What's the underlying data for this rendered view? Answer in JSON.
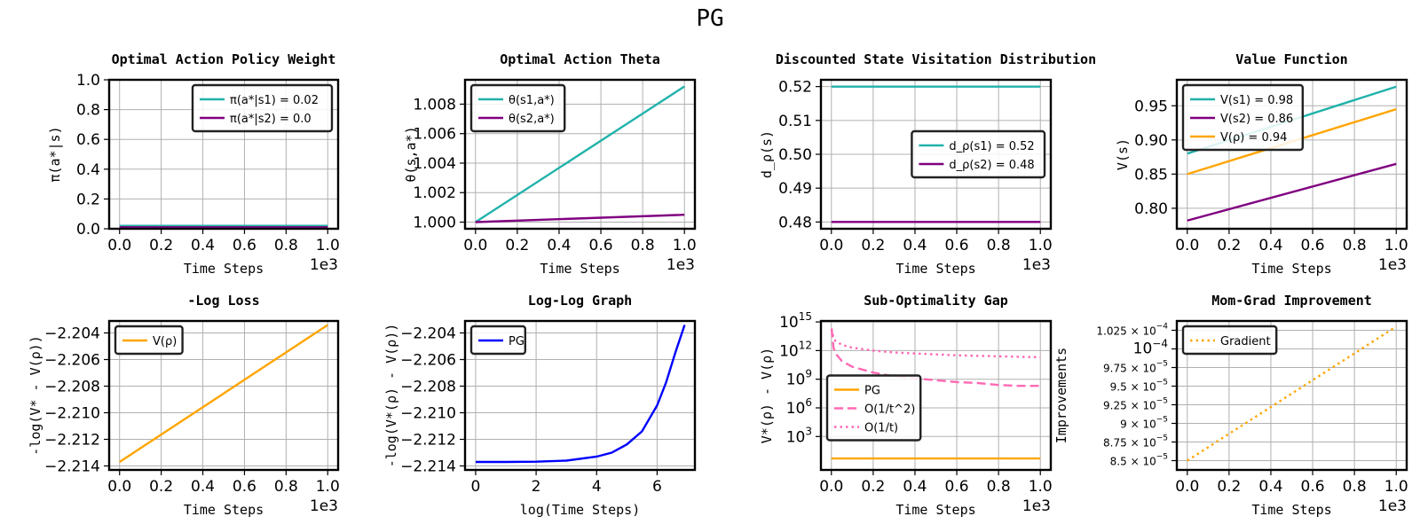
{
  "figure": {
    "title": "PG"
  },
  "chart_data": [
    {
      "type": "line",
      "title": "Optimal Action Policy Weight",
      "xlabel": "Time Steps",
      "ylabel": "π(a*|s)",
      "xlim": [
        -50,
        1050
      ],
      "ylim": [
        0,
        1
      ],
      "xticks": [
        0,
        200,
        400,
        600,
        800,
        1000
      ],
      "xtick_labels": [
        "0.0",
        "0.2",
        "0.4",
        "0.6",
        "0.8",
        "1.0"
      ],
      "x_offset_label": "1e3",
      "yticks": [
        0,
        0.2,
        0.4,
        0.6,
        0.8,
        1.0
      ],
      "ytick_labels": [
        "0.0",
        "0.2",
        "0.4",
        "0.6",
        "0.8",
        "1.0"
      ],
      "grid": true,
      "legend": "top-right",
      "series": [
        {
          "name": "π(a*|s1) = 0.02",
          "color": "#20b2aa",
          "dash": "solid",
          "x": [
            0,
            1000
          ],
          "y": [
            0.02,
            0.02
          ]
        },
        {
          "name": "π(a*|s2) = 0.0",
          "color": "#800080",
          "dash": "solid",
          "x": [
            0,
            1000
          ],
          "y": [
            0.01,
            0.01
          ]
        }
      ]
    },
    {
      "type": "line",
      "title": "Optimal Action Theta",
      "xlabel": "Time Steps",
      "ylabel": "θ(s,a*)",
      "xlim": [
        -50,
        1050
      ],
      "ylim": [
        0.99955,
        1.00965
      ],
      "xticks": [
        0,
        200,
        400,
        600,
        800,
        1000
      ],
      "xtick_labels": [
        "0.0",
        "0.2",
        "0.4",
        "0.6",
        "0.8",
        "1.0"
      ],
      "x_offset_label": "1e3",
      "yticks": [
        1.0,
        1.002,
        1.004,
        1.006,
        1.008
      ],
      "ytick_labels": [
        "1.000",
        "1.002",
        "1.004",
        "1.006",
        "1.008"
      ],
      "grid": true,
      "legend": "top-left",
      "series": [
        {
          "name": "θ(s1,a*)",
          "color": "#20b2aa",
          "dash": "solid",
          "x": [
            0,
            1000
          ],
          "y": [
            1.0,
            1.0092
          ]
        },
        {
          "name": "θ(s2,a*)",
          "color": "#800080",
          "dash": "solid",
          "x": [
            0,
            1000
          ],
          "y": [
            1.0,
            1.0005
          ]
        }
      ]
    },
    {
      "type": "line",
      "title": "Discounted State Visitation Distribution",
      "xlabel": "Time Steps",
      "ylabel": "d_ρ(s)",
      "xlim": [
        -50,
        1050
      ],
      "ylim": [
        0.478,
        0.522
      ],
      "xticks": [
        0,
        200,
        400,
        600,
        800,
        1000
      ],
      "xtick_labels": [
        "0.0",
        "0.2",
        "0.4",
        "0.6",
        "0.8",
        "1.0"
      ],
      "x_offset_label": "1e3",
      "yticks": [
        0.48,
        0.49,
        0.5,
        0.51,
        0.52
      ],
      "ytick_labels": [
        "0.48",
        "0.49",
        "0.50",
        "0.51",
        "0.52"
      ],
      "grid": true,
      "legend": "center-right",
      "series": [
        {
          "name": "d_ρ(s1) = 0.52",
          "color": "#20b2aa",
          "dash": "solid",
          "x": [
            0,
            1000
          ],
          "y": [
            0.52,
            0.52
          ]
        },
        {
          "name": "d_ρ(s2) = 0.48",
          "color": "#800080",
          "dash": "solid",
          "x": [
            0,
            1000
          ],
          "y": [
            0.48,
            0.48
          ]
        }
      ]
    },
    {
      "type": "line",
      "title": "Value Function",
      "xlabel": "Time Steps",
      "ylabel": "V(s)",
      "xlim": [
        -50,
        1050
      ],
      "ylim": [
        0.77,
        0.988
      ],
      "xticks": [
        0,
        200,
        400,
        600,
        800,
        1000
      ],
      "xtick_labels": [
        "0.0",
        "0.2",
        "0.4",
        "0.6",
        "0.8",
        "1.0"
      ],
      "x_offset_label": "1e3",
      "yticks": [
        0.8,
        0.85,
        0.9,
        0.95
      ],
      "ytick_labels": [
        "0.80",
        "0.85",
        "0.90",
        "0.95"
      ],
      "grid": true,
      "legend": "top-left",
      "series": [
        {
          "name": "V(s1) = 0.98",
          "color": "#20b2aa",
          "dash": "solid",
          "x": [
            0,
            1000
          ],
          "y": [
            0.88,
            0.978
          ]
        },
        {
          "name": "V(s2) = 0.86",
          "color": "#800080",
          "dash": "solid",
          "x": [
            0,
            1000
          ],
          "y": [
            0.782,
            0.865
          ]
        },
        {
          "name": "V(ρ) = 0.94",
          "color": "#ffa500",
          "dash": "solid",
          "x": [
            0,
            1000
          ],
          "y": [
            0.85,
            0.945
          ]
        }
      ]
    },
    {
      "type": "line",
      "title": "-Log Loss",
      "xlabel": "Time Steps",
      "ylabel": "-log(V* - V(ρ))",
      "xlim": [
        -50,
        1050
      ],
      "ylim": [
        -2.2143,
        -2.2031
      ],
      "xticks": [
        0,
        200,
        400,
        600,
        800,
        1000
      ],
      "xtick_labels": [
        "0.0",
        "0.2",
        "0.4",
        "0.6",
        "0.8",
        "1.0"
      ],
      "x_offset_label": "1e3",
      "yticks": [
        -2.214,
        -2.212,
        -2.21,
        -2.208,
        -2.206,
        -2.204
      ],
      "ytick_labels": [
        "−2.214",
        "−2.212",
        "−2.210",
        "−2.208",
        "−2.206",
        "−2.204"
      ],
      "grid": true,
      "legend": "top-left",
      "series": [
        {
          "name": "V(ρ)",
          "color": "#ffa500",
          "dash": "solid",
          "x": [
            0,
            1000
          ],
          "y": [
            -2.2137,
            -2.2034
          ]
        }
      ]
    },
    {
      "type": "line",
      "title": "Log-Log Graph",
      "xlabel": "log(Time Steps)",
      "ylabel": "-log(V*(ρ) - V(ρ))",
      "xlim": [
        -0.35,
        7.25
      ],
      "ylim": [
        -2.2143,
        -2.2031
      ],
      "xticks": [
        0,
        2,
        4,
        6
      ],
      "xtick_labels": [
        "0",
        "2",
        "4",
        "6"
      ],
      "yticks": [
        -2.214,
        -2.212,
        -2.21,
        -2.208,
        -2.206,
        -2.204
      ],
      "ytick_labels": [
        "−2.214",
        "−2.212",
        "−2.210",
        "−2.208",
        "−2.206",
        "−2.204"
      ],
      "grid": true,
      "legend": "top-left",
      "series": [
        {
          "name": "PG",
          "color": "#0000ff",
          "dash": "solid",
          "x": [
            0,
            1,
            2,
            3,
            4,
            4.5,
            5,
            5.5,
            6,
            6.3,
            6.6,
            6.91
          ],
          "y": [
            -2.2137,
            -2.2137,
            -2.21368,
            -2.2136,
            -2.2133,
            -2.213,
            -2.21238,
            -2.2114,
            -2.20945,
            -2.2077,
            -2.2055,
            -2.2034
          ]
        }
      ]
    },
    {
      "type": "line",
      "title": "Sub-Optimality Gap",
      "xlabel": "Time Steps",
      "ylabel": "V*(ρ) - V(ρ)",
      "xlim": [
        -50,
        1050
      ],
      "ylim_log10": [
        -0.5,
        15.1
      ],
      "yscale": "log",
      "xticks": [
        0,
        200,
        400,
        600,
        800,
        1000
      ],
      "xtick_labels": [
        "0.0",
        "0.2",
        "0.4",
        "0.6",
        "0.8",
        "1.0"
      ],
      "x_offset_label": "1e3",
      "yticks_log10": [
        3,
        6,
        9,
        12,
        15
      ],
      "ytick_bases": [
        "10",
        "10",
        "10",
        "10",
        "10"
      ],
      "ytick_exps": [
        "3",
        "6",
        "9",
        "12",
        "15"
      ],
      "grid": true,
      "legend": "center-left",
      "series": [
        {
          "name": "PG",
          "color": "#ffa500",
          "dash": "solid",
          "x": [
            0,
            1000
          ],
          "y_log10": [
            0.7,
            0.7
          ]
        },
        {
          "name": "O(1/t^2)",
          "color": "#ff69b4",
          "dash": "dashed",
          "x": [
            1,
            10,
            20,
            50,
            100,
            200,
            300,
            400,
            500,
            600,
            700,
            800,
            900,
            1000
          ],
          "y_log10": [
            14.3,
            12.3,
            11.7,
            10.9,
            10.3,
            9.7,
            9.3,
            9.1,
            8.9,
            8.7,
            8.6,
            8.4,
            8.3,
            8.3
          ]
        },
        {
          "name": "O(1/t)",
          "color": "#ff69b4",
          "dash": "dotted",
          "x": [
            1,
            10,
            20,
            50,
            100,
            200,
            300,
            400,
            500,
            600,
            700,
            800,
            900,
            1000
          ],
          "y_log10": [
            14.3,
            13.3,
            13.0,
            12.6,
            12.3,
            12.0,
            11.8,
            11.7,
            11.6,
            11.5,
            11.45,
            11.4,
            11.35,
            11.3
          ]
        }
      ]
    },
    {
      "type": "line",
      "title": "Mom-Grad Improvement",
      "xlabel": "Time Steps",
      "ylabel": "Improvements",
      "xlim": [
        -50,
        1050
      ],
      "ylim": [
        8.375e-05,
        0.00010375
      ],
      "xticks": [
        0,
        200,
        400,
        600,
        800,
        1000
      ],
      "xtick_labels": [
        "0.0",
        "0.2",
        "0.4",
        "0.6",
        "0.8",
        "1.0"
      ],
      "x_offset_label": "1e3",
      "yticks": [
        8.5e-05,
        8.75e-05,
        9e-05,
        9.25e-05,
        9.5e-05,
        9.75e-05,
        0.0001,
        0.0001025
      ],
      "ytick_mantissas": [
        "8.5",
        "8.75",
        "9",
        "9.25",
        "9.5",
        "9.75",
        "",
        "1.025"
      ],
      "ytick_exps": [
        "−5",
        "−5",
        "−5",
        "−5",
        "−5",
        "−5",
        "−4",
        "−4"
      ],
      "ytick_major": [
        false,
        false,
        false,
        false,
        false,
        false,
        true,
        false
      ],
      "grid": true,
      "legend": "top-left",
      "series": [
        {
          "name": "Gradient",
          "color": "#ffa500",
          "dash": "dotted",
          "x": [
            0,
            1000
          ],
          "y": [
            8.5e-05,
            0.000103
          ]
        }
      ]
    }
  ]
}
